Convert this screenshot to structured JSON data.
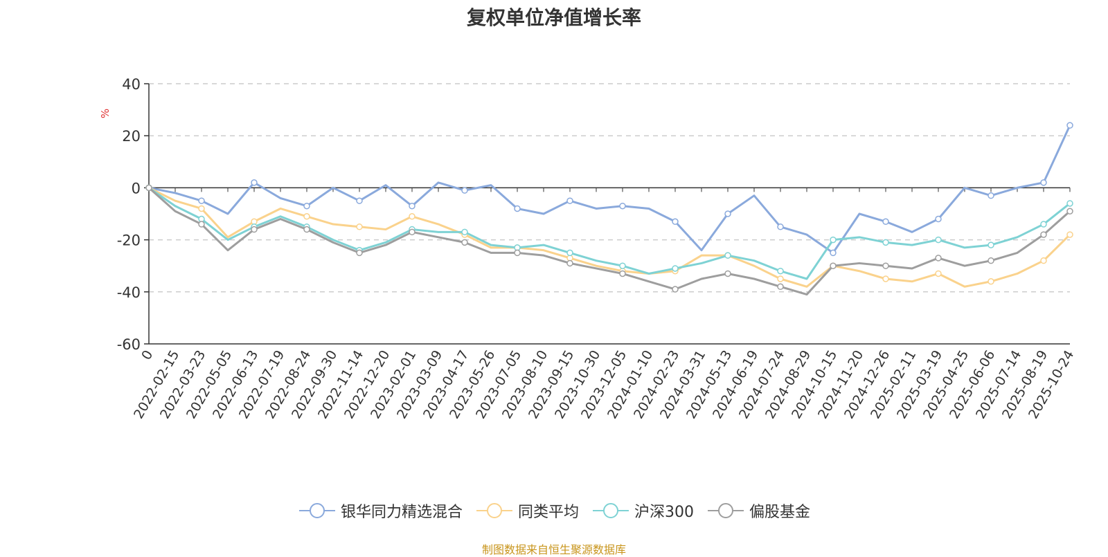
{
  "chart_data": {
    "type": "line",
    "title": "复权单位净值增长率",
    "ylabel": "%",
    "xlabel": "",
    "ylim": [
      -60,
      40
    ],
    "yticks": [
      40,
      20,
      0,
      -20,
      -40,
      -60
    ],
    "grid": true,
    "legend_position": "bottom-center",
    "x_tick_labels": [
      "0",
      "2022-02-15",
      "2022-03-23",
      "2022-05-05",
      "2022-06-13",
      "2022-07-19",
      "2022-08-24",
      "2022-09-30",
      "2022-11-14",
      "2022-12-20",
      "2023-02-01",
      "2023-03-09",
      "2023-04-17",
      "2023-05-26",
      "2023-07-05",
      "2023-08-10",
      "2023-09-15",
      "2023-10-30",
      "2023-12-05",
      "2024-01-10",
      "2024-02-23",
      "2024-03-31",
      "2024-05-13",
      "2024-06-19",
      "2024-07-24",
      "2024-08-29",
      "2024-10-15",
      "2024-11-20",
      "2024-12-26",
      "2025-02-11",
      "2025-03-19",
      "2025-04-25",
      "2025-06-06",
      "2025-07-14",
      "2025-08-19",
      "2025-10-24"
    ],
    "x_index": [
      0,
      1,
      2,
      3,
      4,
      5,
      6,
      7,
      8,
      9,
      10,
      11,
      12,
      13,
      14,
      15,
      16,
      17,
      18,
      19,
      20,
      21,
      22,
      23,
      24,
      25,
      26,
      27,
      28,
      29,
      30,
      31,
      32,
      33,
      34,
      35
    ],
    "series": [
      {
        "name": "银华同力精选混合",
        "color": "#8aa9dc",
        "values": [
          0,
          -2,
          -5,
          -10,
          2,
          -4,
          -7,
          0,
          -5,
          1,
          -7,
          2,
          -1,
          1,
          -8,
          -10,
          -5,
          -8,
          -7,
          -8,
          -13,
          -24,
          -10,
          -3,
          -15,
          -18,
          -25,
          -10,
          -13,
          -17,
          -12,
          0,
          -3,
          0,
          2,
          24
        ]
      },
      {
        "name": "同类平均",
        "color": "#fad28c",
        "values": [
          0,
          -5,
          -8,
          -19,
          -13,
          -8,
          -11,
          -14,
          -15,
          -16,
          -11,
          -14,
          -18,
          -23,
          -23,
          -24,
          -27,
          -30,
          -32,
          -33,
          -32,
          -26,
          -26,
          -30,
          -35,
          -38,
          -30,
          -32,
          -35,
          -36,
          -33,
          -38,
          -36,
          -33,
          -28,
          -18
        ]
      },
      {
        "name": "沪深300",
        "color": "#7ed2d4",
        "values": [
          0,
          -7,
          -12,
          -20,
          -15,
          -11,
          -15,
          -20,
          -24,
          -21,
          -16,
          -17,
          -17,
          -22,
          -23,
          -22,
          -25,
          -28,
          -30,
          -33,
          -31,
          -29,
          -26,
          -28,
          -32,
          -35,
          -20,
          -19,
          -21,
          -22,
          -20,
          -23,
          -22,
          -19,
          -14,
          -6
        ]
      },
      {
        "name": "偏股基金",
        "color": "#9e9e9e",
        "values": [
          0,
          -9,
          -14,
          -24,
          -16,
          -12,
          -16,
          -21,
          -25,
          -22,
          -17,
          -19,
          -21,
          -25,
          -25,
          -26,
          -29,
          -31,
          -33,
          -36,
          -39,
          -35,
          -33,
          -35,
          -38,
          -41,
          -30,
          -29,
          -30,
          -31,
          -27,
          -30,
          -28,
          -25,
          -18,
          -9
        ]
      }
    ]
  },
  "legend": {
    "items": [
      {
        "label": "银华同力精选混合",
        "color": "#8aa9dc"
      },
      {
        "label": "同类平均",
        "color": "#fad28c"
      },
      {
        "label": "沪深300",
        "color": "#7ed2d4"
      },
      {
        "label": "偏股基金",
        "color": "#9e9e9e"
      }
    ]
  },
  "source_note": "制图数据来自恒生聚源数据库"
}
